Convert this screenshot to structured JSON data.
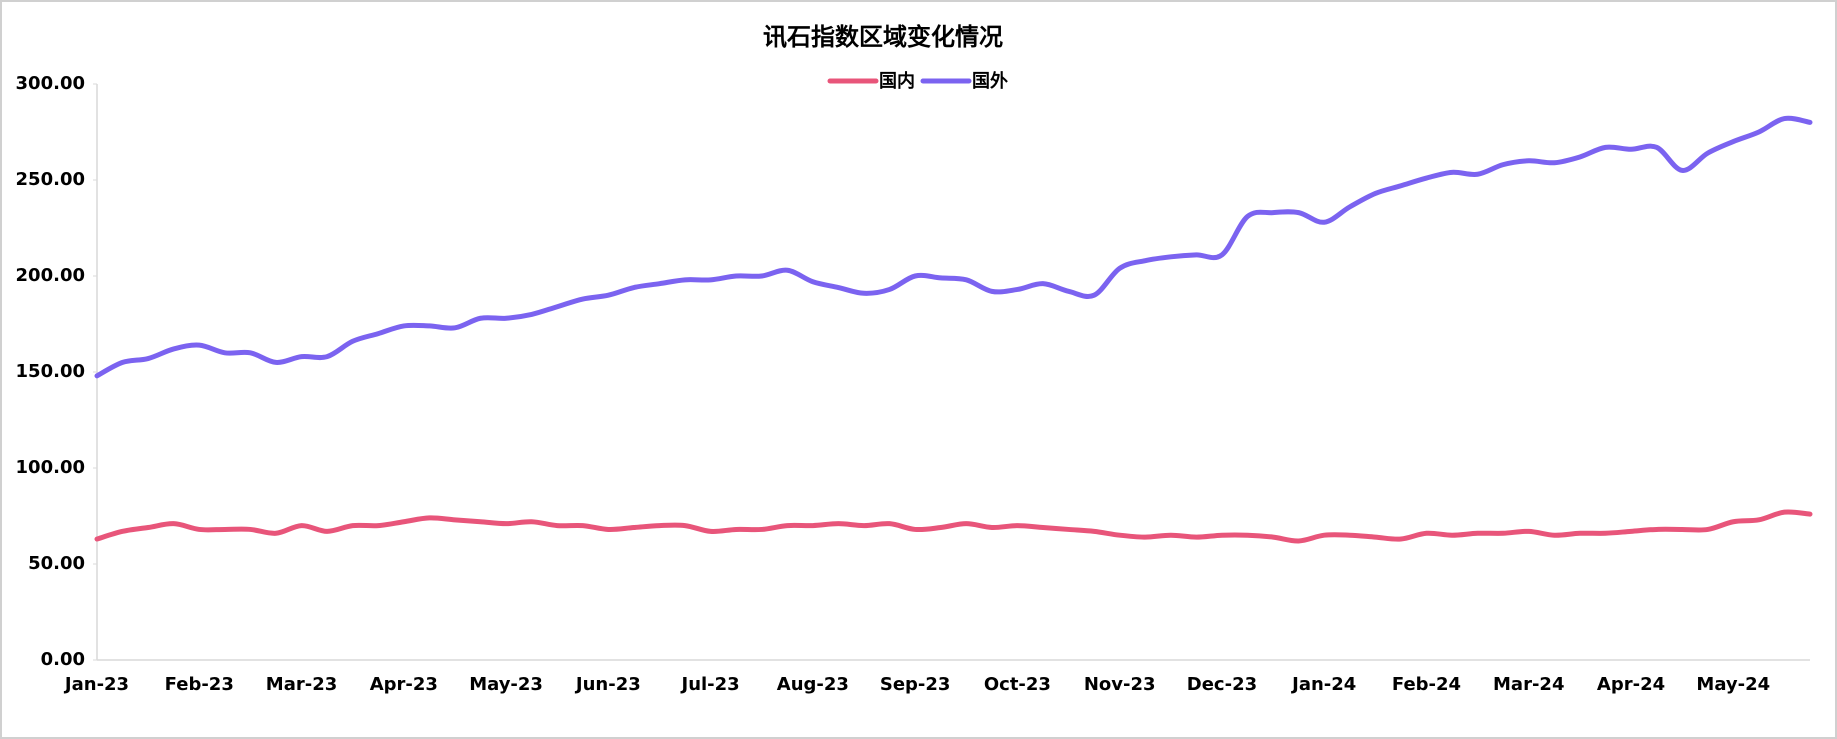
{
  "chart_data": {
    "type": "line",
    "title": "讯石指数区域变化情况",
    "categories": [
      "Jan-23",
      null,
      null,
      null,
      "Feb-23",
      null,
      null,
      null,
      "Mar-23",
      null,
      null,
      null,
      "Apr-23",
      null,
      null,
      null,
      "May-23",
      null,
      null,
      null,
      "Jun-23",
      null,
      null,
      null,
      "Jul-23",
      null,
      null,
      null,
      "Aug-23",
      null,
      null,
      null,
      "Sep-23",
      null,
      null,
      null,
      "Oct-23",
      null,
      null,
      null,
      "Nov-23",
      null,
      null,
      null,
      "Dec-23",
      null,
      null,
      null,
      "Jan-24",
      null,
      null,
      null,
      "Feb-24",
      null,
      null,
      null,
      "Mar-24",
      null,
      null,
      null,
      "Apr-24",
      null,
      null,
      null,
      "May-24",
      null,
      null,
      null
    ],
    "series": [
      {
        "name": "国内",
        "color": "#e8557a",
        "values": [
          63,
          67,
          69,
          71,
          68,
          68,
          68,
          66,
          70,
          67,
          70,
          70,
          72,
          74,
          73,
          72,
          71,
          72,
          70,
          70,
          68,
          69,
          70,
          70,
          67,
          68,
          68,
          70,
          70,
          71,
          70,
          71,
          68,
          69,
          71,
          69,
          70,
          69,
          68,
          67,
          65,
          64,
          65,
          64,
          65,
          65,
          64,
          62,
          65,
          65,
          64,
          63,
          66,
          65,
          66,
          66,
          67,
          65,
          66,
          66,
          67,
          68,
          68,
          68,
          72,
          73,
          77,
          76
        ]
      },
      {
        "name": "国外",
        "color": "#7b63f0",
        "values": [
          148,
          155,
          157,
          162,
          164,
          160,
          160,
          155,
          158,
          158,
          166,
          170,
          174,
          174,
          173,
          178,
          178,
          180,
          184,
          188,
          190,
          194,
          196,
          198,
          198,
          200,
          200,
          203,
          197,
          194,
          191,
          193,
          200,
          199,
          198,
          192,
          193,
          196,
          192,
          190,
          204,
          208,
          210,
          211,
          211,
          231,
          233,
          233,
          228,
          236,
          243,
          247,
          251,
          254,
          253,
          258,
          260,
          259,
          262,
          267,
          266,
          267,
          255,
          264,
          270,
          275,
          282,
          280
        ]
      }
    ],
    "ylim": [
      0,
      300
    ],
    "yticks": [
      {
        "value": 0,
        "label": "0.00"
      },
      {
        "value": 50,
        "label": "50.00"
      },
      {
        "value": 100,
        "label": "100.00"
      },
      {
        "value": 150,
        "label": "150.00"
      },
      {
        "value": 200,
        "label": "200.00"
      },
      {
        "value": 250,
        "label": "250.00"
      },
      {
        "value": 300,
        "label": "300.00"
      }
    ]
  }
}
